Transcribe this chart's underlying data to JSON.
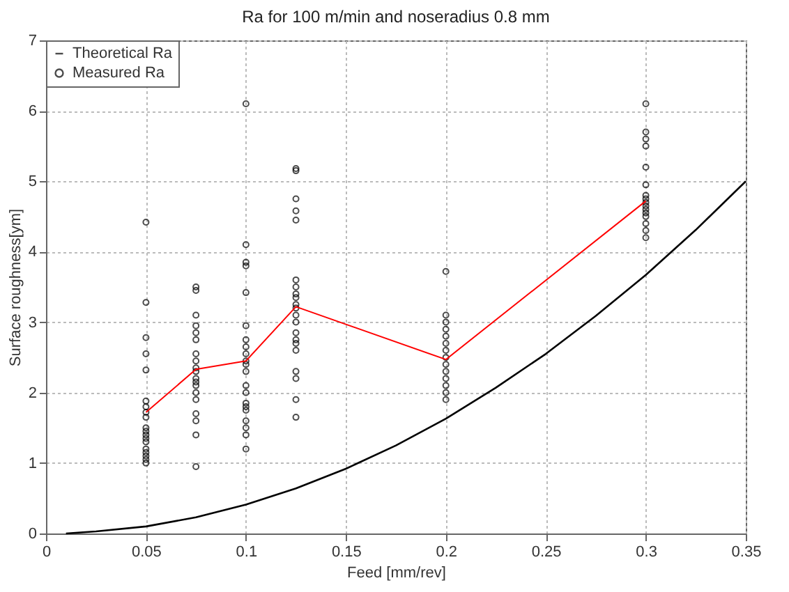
{
  "chart_data": {
    "type": "scatter",
    "title": "Ra for 100 m/min and noseradius 0.8 mm",
    "xlabel": "Feed [mm/rev]",
    "ylabel": "Surface roughness[ym]",
    "xlim": [
      0,
      0.35
    ],
    "xticks": [
      0,
      0.05,
      0.1,
      0.15,
      0.2,
      0.25,
      0.3,
      0.35
    ],
    "ylim": [
      0,
      7
    ],
    "yticks": [
      0,
      1,
      2,
      3,
      4,
      5,
      6,
      7
    ],
    "grid": true,
    "legend": "top left",
    "series": [
      {
        "name": "Theoretical Ra",
        "type": "line",
        "color": "#000000",
        "x": [
          0.01,
          0.025,
          0.05,
          0.075,
          0.1,
          0.125,
          0.15,
          0.175,
          0.2,
          0.225,
          0.25,
          0.275,
          0.3,
          0.325,
          0.35
        ],
        "values": [
          0,
          0.03,
          0.1,
          0.23,
          0.41,
          0.64,
          0.92,
          1.25,
          1.63,
          2.07,
          2.55,
          3.09,
          3.67,
          4.31,
          5.0
        ]
      },
      {
        "name": "Measured Ra",
        "marker": "circle",
        "color": "#000000",
        "x": [
          0.05,
          0.05,
          0.05,
          0.05,
          0.05,
          0.05,
          0.05,
          0.05,
          0.05,
          0.05,
          0.05,
          0.05,
          0.05,
          0.05,
          0.05,
          0.05,
          0.05,
          0.05,
          0.05,
          0.075,
          0.075,
          0.075,
          0.075,
          0.075,
          0.075,
          0.075,
          0.075,
          0.075,
          0.075,
          0.075,
          0.075,
          0.075,
          0.075,
          0.075,
          0.075,
          0.075,
          0.075,
          0.075,
          0.1,
          0.1,
          0.1,
          0.1,
          0.1,
          0.1,
          0.1,
          0.1,
          0.1,
          0.1,
          0.1,
          0.1,
          0.1,
          0.1,
          0.1,
          0.1,
          0.1,
          0.1,
          0.1,
          0.1,
          0.1,
          0.125,
          0.125,
          0.125,
          0.125,
          0.125,
          0.125,
          0.125,
          0.125,
          0.125,
          0.125,
          0.125,
          0.125,
          0.125,
          0.125,
          0.125,
          0.125,
          0.125,
          0.125,
          0.125,
          0.125,
          0.125,
          0.2,
          0.2,
          0.2,
          0.2,
          0.2,
          0.2,
          0.2,
          0.2,
          0.2,
          0.2,
          0.2,
          0.2,
          0.2,
          0.2,
          0.3,
          0.3,
          0.3,
          0.3,
          0.3,
          0.3,
          0.3,
          0.3,
          0.3,
          0.3,
          0.3,
          0.3,
          0.3,
          0.3,
          0.3,
          0.3
        ],
        "values": [
          4.42,
          3.28,
          2.78,
          2.55,
          2.32,
          1.88,
          1.8,
          1.72,
          1.65,
          1.5,
          1.45,
          1.4,
          1.35,
          1.3,
          1.2,
          1.15,
          1.1,
          1.05,
          1.0,
          3.5,
          3.45,
          3.1,
          2.95,
          2.85,
          2.75,
          2.55,
          2.45,
          2.35,
          2.3,
          2.2,
          2.15,
          2.1,
          2.0,
          1.9,
          1.7,
          1.6,
          1.4,
          0.95,
          6.1,
          4.1,
          3.85,
          3.8,
          3.42,
          2.95,
          2.75,
          2.65,
          2.55,
          2.45,
          2.4,
          2.3,
          2.1,
          2.0,
          1.85,
          1.8,
          1.75,
          1.6,
          1.5,
          1.4,
          1.2,
          5.18,
          5.15,
          4.75,
          4.58,
          4.45,
          3.6,
          3.5,
          3.4,
          3.35,
          3.25,
          3.2,
          3.1,
          3.0,
          2.85,
          2.75,
          2.7,
          2.6,
          2.3,
          2.2,
          1.9,
          1.65,
          3.72,
          3.1,
          3.0,
          2.9,
          2.8,
          2.7,
          2.6,
          2.5,
          2.4,
          2.3,
          2.2,
          2.1,
          2.0,
          1.9,
          6.1,
          5.7,
          5.6,
          5.5,
          5.2,
          4.95,
          4.8,
          4.75,
          4.7,
          4.65,
          4.6,
          4.55,
          4.5,
          4.4,
          4.3,
          4.2
        ]
      },
      {
        "type": "line",
        "color": "#ff0000",
        "x": [
          0.05,
          0.075,
          0.1,
          0.125,
          0.2,
          0.3
        ],
        "values": [
          1.72,
          2.33,
          2.45,
          3.22,
          2.47,
          4.72
        ]
      }
    ]
  }
}
